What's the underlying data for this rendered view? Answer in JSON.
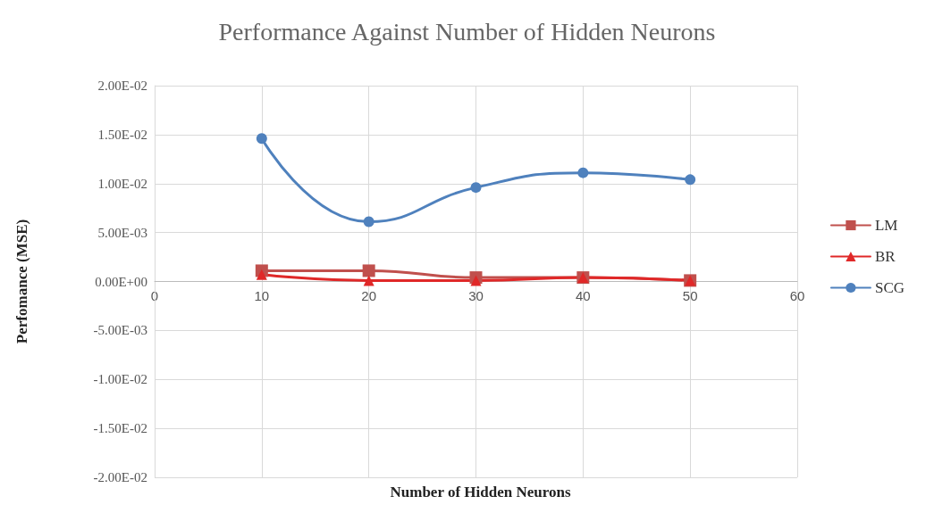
{
  "chart_data": {
    "type": "line",
    "title": "Performance Against Number of Hidden Neurons",
    "xlabel": "Number of Hidden Neurons",
    "ylabel": "Perfomance (MSE)",
    "x": [
      10,
      20,
      30,
      40,
      50
    ],
    "series": [
      {
        "name": "LM",
        "color": "#c0504d",
        "marker": "square",
        "values": [
          0.0011,
          0.0011,
          0.0004,
          0.0004,
          0.0001
        ]
      },
      {
        "name": "BR",
        "color": "#e02828",
        "marker": "triangle",
        "values": [
          0.0007,
          0.0001,
          0.0001,
          0.0004,
          0.0001
        ]
      },
      {
        "name": "SCG",
        "color": "#4f81bd",
        "marker": "circle",
        "values": [
          0.0146,
          0.0061,
          0.0096,
          0.0111,
          0.0104
        ]
      }
    ],
    "xlim": [
      0,
      60
    ],
    "xticks": [
      0,
      10,
      20,
      30,
      40,
      50,
      60
    ],
    "ylim": [
      -0.02,
      0.02
    ],
    "yticks": [
      {
        "value": -0.02,
        "label": "-2.00E-02"
      },
      {
        "value": -0.015,
        "label": "-1.50E-02"
      },
      {
        "value": -0.01,
        "label": "-1.00E-02"
      },
      {
        "value": -0.005,
        "label": "-5.00E-03"
      },
      {
        "value": 0,
        "label": "0.00E+00"
      },
      {
        "value": 0.005,
        "label": "5.00E-03"
      },
      {
        "value": 0.01,
        "label": "1.00E-02"
      },
      {
        "value": 0.015,
        "label": "1.50E-02"
      },
      {
        "value": 0.02,
        "label": "2.00E-02"
      }
    ],
    "grid": true,
    "legend": "right",
    "line_style": "solid"
  }
}
